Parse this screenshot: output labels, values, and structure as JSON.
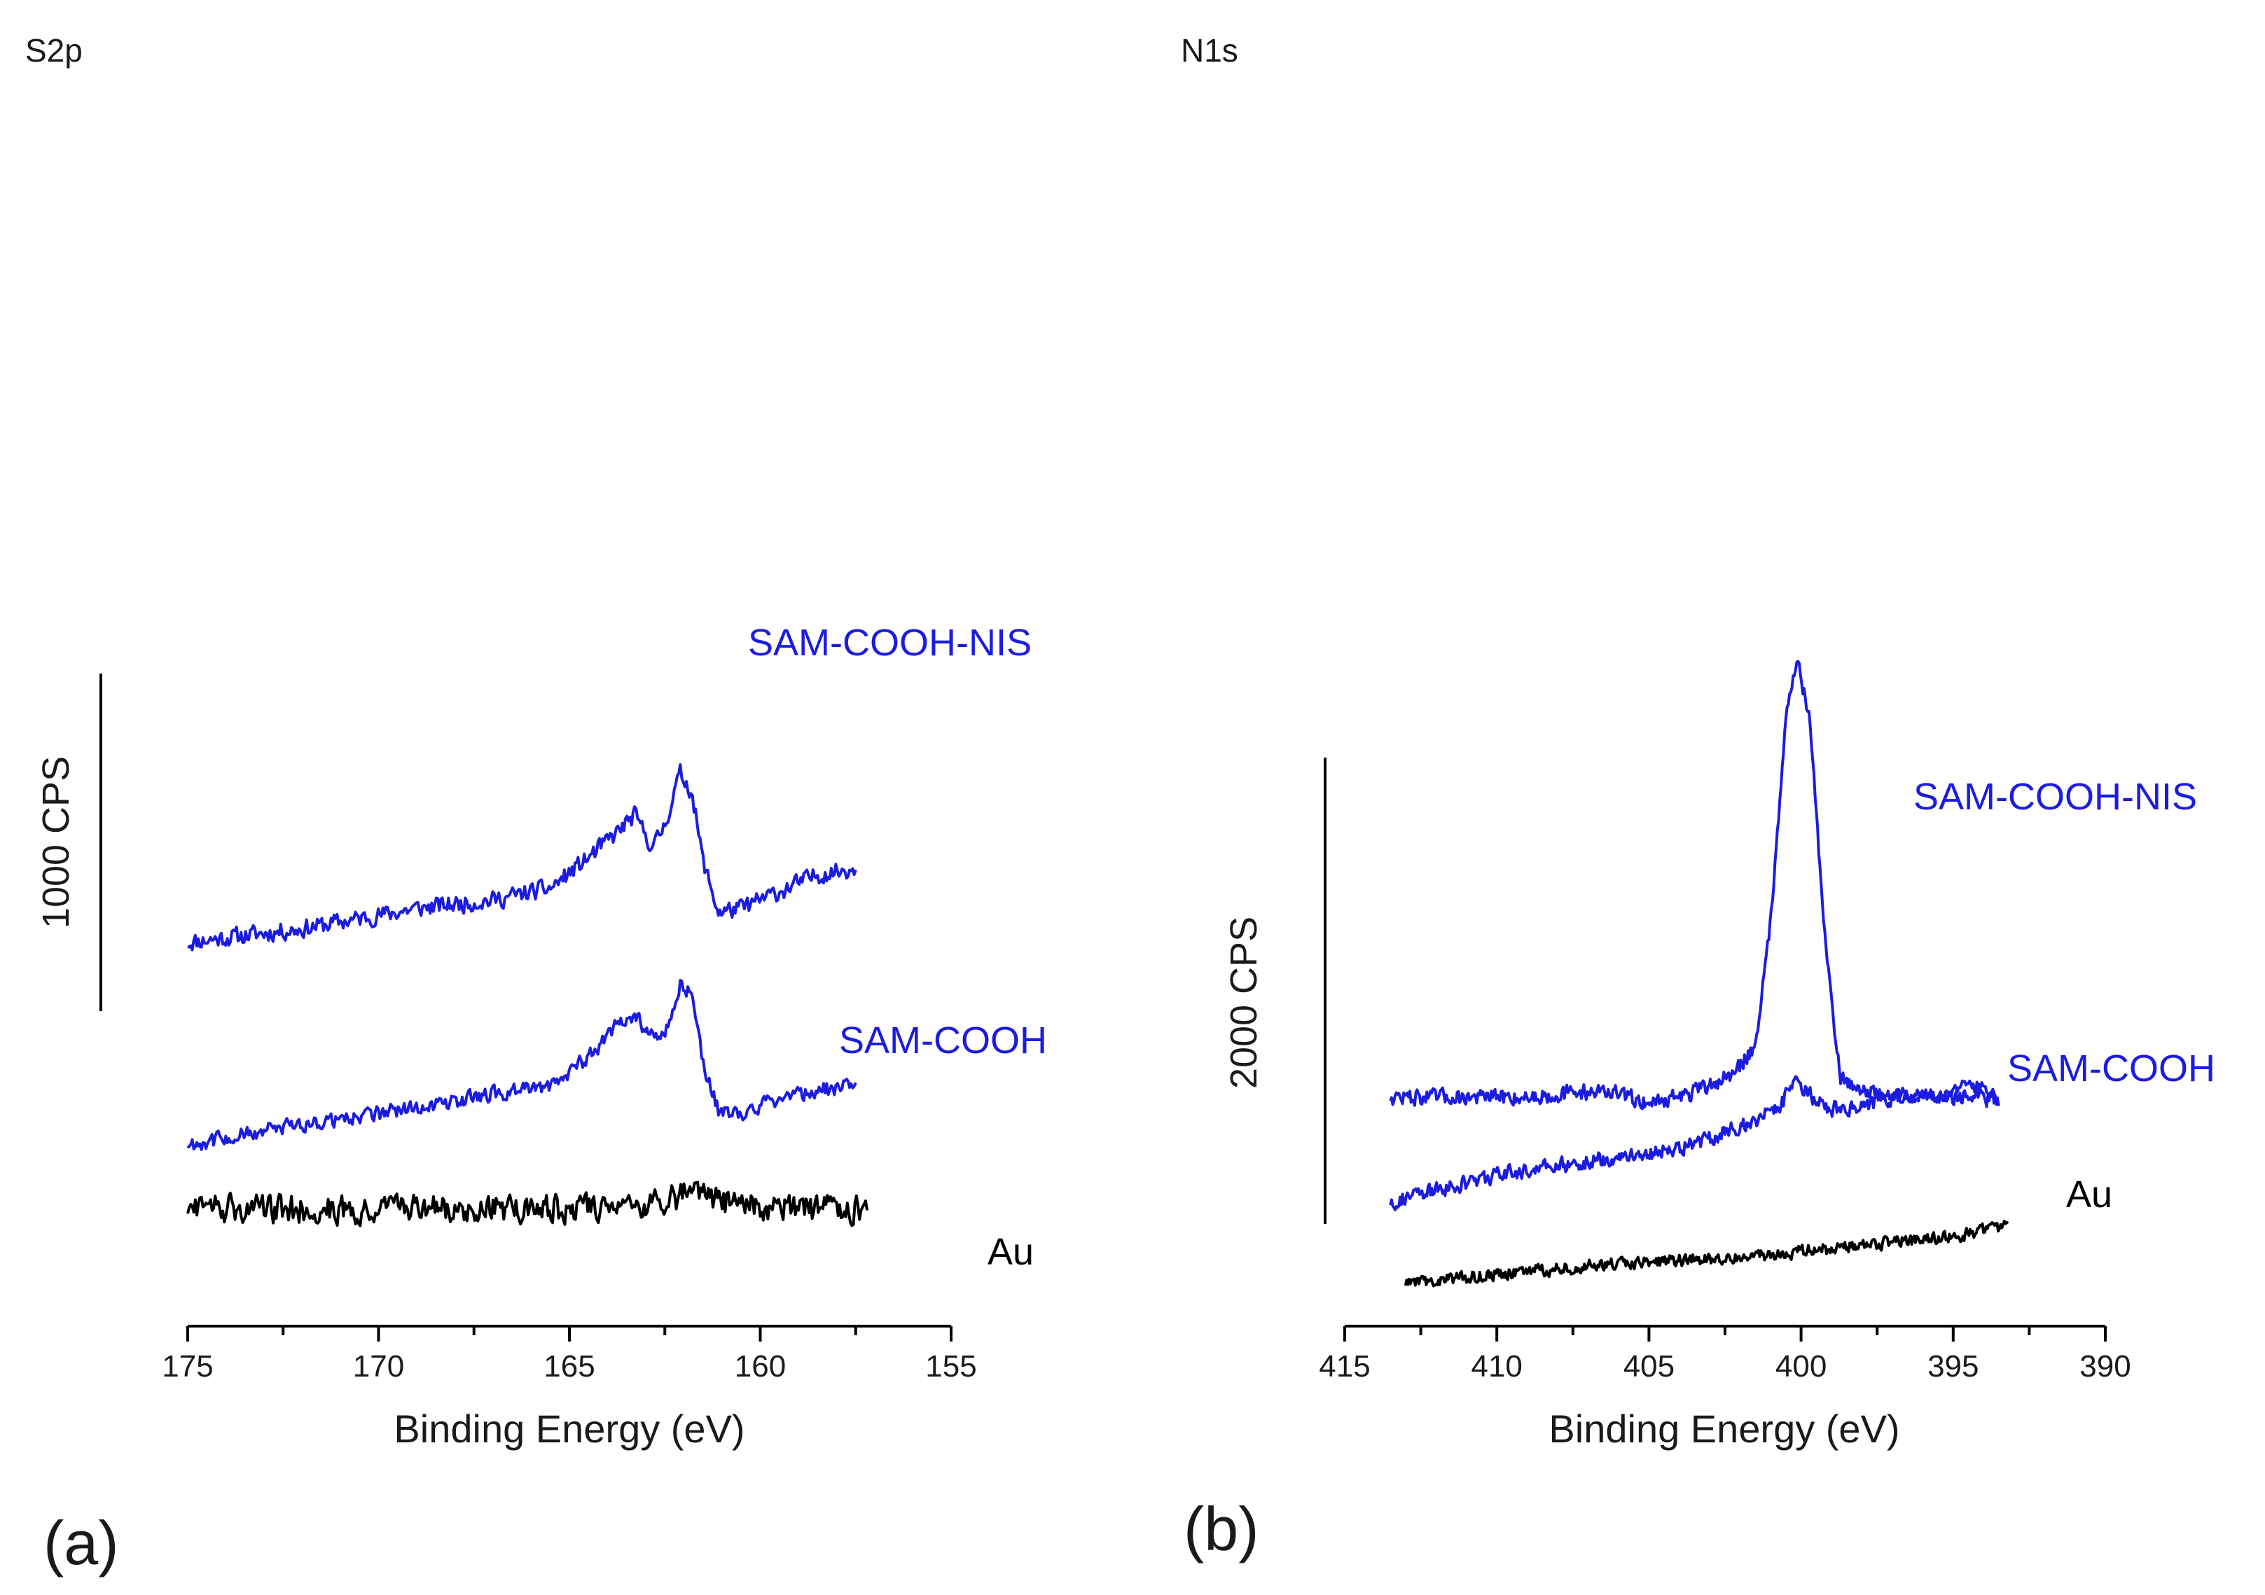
{
  "colors": {
    "sam": "#1c1ce0",
    "au": "#000000"
  },
  "chart_data": [
    {
      "type": "line",
      "panel": "(a)",
      "title": "S2p",
      "xlabel": "Binding Energy (eV)",
      "ylabel": "",
      "xlim": [
        175,
        155
      ],
      "x_ticks": [
        175,
        170,
        165,
        160,
        155
      ],
      "scale_bar_label": "1000 CPS",
      "scale_bar_cps": 1000,
      "series": [
        {
          "name": "SAM-COOH-NIS",
          "label": "SAM-COOH-NIS",
          "color_key": "sam",
          "offset": 2300,
          "noise": 70,
          "x_range": [
            175,
            157.5
          ],
          "points": [
            [
              175,
              0
            ],
            [
              172,
              80
            ],
            [
              169,
              200
            ],
            [
              167,
              250
            ],
            [
              165.5,
              320
            ],
            [
              164.5,
              500
            ],
            [
              163.8,
              640
            ],
            [
              163.3,
              750
            ],
            [
              162.8,
              560
            ],
            [
              162.5,
              700
            ],
            [
              162.1,
              1000
            ],
            [
              161.8,
              900
            ],
            [
              161.5,
              480
            ],
            [
              161.1,
              180
            ],
            [
              160.5,
              200
            ],
            [
              159.5,
              300
            ],
            [
              158.5,
              400
            ],
            [
              157.5,
              440
            ]
          ]
        },
        {
          "name": "SAM-COOH",
          "label": "SAM-COOH",
          "color_key": "sam",
          "offset": 1100,
          "noise": 60,
          "x_range": [
            175,
            157.5
          ],
          "points": [
            [
              175,
              0
            ],
            [
              172,
              120
            ],
            [
              169,
              220
            ],
            [
              167,
              300
            ],
            [
              165.5,
              350
            ],
            [
              164.5,
              520
            ],
            [
              163.8,
              700
            ],
            [
              163.3,
              760
            ],
            [
              162.8,
              640
            ],
            [
              162.5,
              660
            ],
            [
              162.1,
              950
            ],
            [
              161.8,
              900
            ],
            [
              161.5,
              480
            ],
            [
              161.1,
              200
            ],
            [
              160.5,
              180
            ],
            [
              159.5,
              280
            ],
            [
              158.5,
              320
            ],
            [
              157.5,
              350
            ]
          ]
        },
        {
          "name": "Au",
          "label": "Au",
          "color_key": "au",
          "offset": 720,
          "noise": 110,
          "x_range": [
            175,
            157.2
          ],
          "points": [
            [
              175,
              0
            ],
            [
              170,
              0
            ],
            [
              165,
              0
            ],
            [
              163,
              40
            ],
            [
              162,
              80
            ],
            [
              160.5,
              20
            ],
            [
              159,
              0
            ],
            [
              157.2,
              0
            ]
          ]
        }
      ]
    },
    {
      "type": "line",
      "panel": "(b)",
      "title": "N1s",
      "xlabel": "Binding Energy (eV)",
      "ylabel": "",
      "xlim": [
        415,
        390
      ],
      "x_ticks": [
        415,
        410,
        405,
        400,
        395,
        390
      ],
      "scale_bar_label": "2000 CPS",
      "scale_bar_cps": 2000,
      "series": [
        {
          "name": "SAM-COOH-NIS",
          "label": "SAM-COOH-NIS",
          "color_key": "sam",
          "offset": 2000,
          "noise": 90,
          "x_range": [
            413.5,
            393.5
          ],
          "points": [
            [
              413.5,
              0
            ],
            [
              409,
              0
            ],
            [
              406.5,
              60
            ],
            [
              405,
              -50
            ],
            [
              403.5,
              40
            ],
            [
              402.2,
              200
            ],
            [
              401.5,
              450
            ],
            [
              401,
              1500
            ],
            [
              400.5,
              3300
            ],
            [
              400.1,
              3750
            ],
            [
              399.7,
              3200
            ],
            [
              399.2,
              1300
            ],
            [
              398.7,
              150
            ],
            [
              397.5,
              20
            ],
            [
              395,
              10
            ],
            [
              393.5,
              -20
            ]
          ]
        },
        {
          "name": "SAM-COOH",
          "label": "SAM-COOH",
          "color_key": "sam",
          "offset": 1100,
          "noise": 90,
          "x_range": [
            413.5,
            393.5
          ],
          "points": [
            [
              413.5,
              0
            ],
            [
              410,
              230
            ],
            [
              407,
              350
            ],
            [
              404,
              460
            ],
            [
              402,
              640
            ],
            [
              400.8,
              800
            ],
            [
              400.2,
              1000
            ],
            [
              399,
              800
            ],
            [
              397,
              880
            ],
            [
              395,
              950
            ],
            [
              394,
              1000
            ],
            [
              393.5,
              900
            ]
          ]
        },
        {
          "name": "Au",
          "label": "Au",
          "color_key": "au",
          "offset": 400,
          "noise": 70,
          "x_range": [
            413,
            393.2
          ],
          "points": [
            [
              413,
              0
            ],
            [
              410,
              80
            ],
            [
              407,
              150
            ],
            [
              404,
              200
            ],
            [
              401,
              250
            ],
            [
              398,
              330
            ],
            [
              395,
              400
            ],
            [
              393.2,
              500
            ]
          ]
        }
      ]
    }
  ]
}
